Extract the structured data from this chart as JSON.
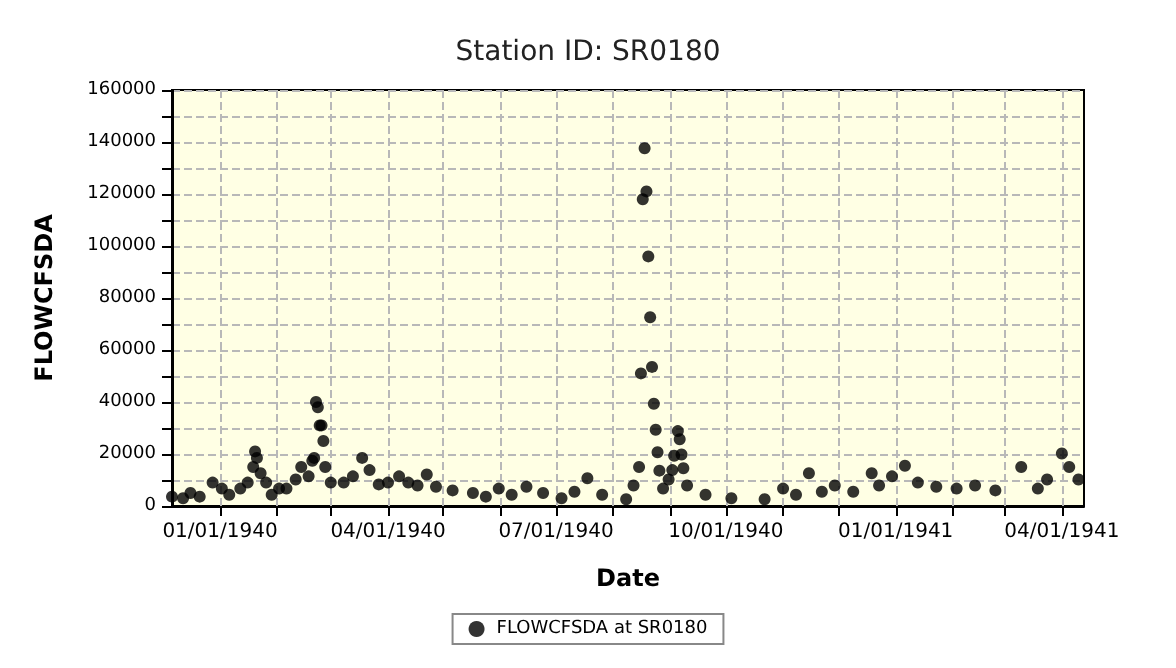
{
  "chart_data": {
    "type": "scatter",
    "title": "Station ID: SR0180",
    "xlabel": "Date",
    "ylabel": "FLOWCFSDA",
    "xlim": [
      "1939-12-06",
      "1941-04-13"
    ],
    "ylim": [
      0,
      160000
    ],
    "xticks": [
      {
        "value": "1940-01-01",
        "label": "01/01/1940"
      },
      {
        "value": "1940-02-01",
        "label": null
      },
      {
        "value": "1940-03-01",
        "label": null
      },
      {
        "value": "1940-04-01",
        "label": "04/01/1940"
      },
      {
        "value": "1940-05-01",
        "label": null
      },
      {
        "value": "1940-06-01",
        "label": null
      },
      {
        "value": "1940-07-01",
        "label": "07/01/1940"
      },
      {
        "value": "1940-08-01",
        "label": null
      },
      {
        "value": "1940-09-01",
        "label": null
      },
      {
        "value": "1940-10-01",
        "label": "10/01/1940"
      },
      {
        "value": "1940-11-01",
        "label": null
      },
      {
        "value": "1940-12-01",
        "label": null
      },
      {
        "value": "1941-01-01",
        "label": "01/01/1941"
      },
      {
        "value": "1941-02-01",
        "label": null
      },
      {
        "value": "1941-03-01",
        "label": null
      },
      {
        "value": "1941-04-01",
        "label": "04/01/1941"
      }
    ],
    "yticks": [
      0,
      {
        "value": 10000,
        "label": null
      },
      20000,
      {
        "value": 30000,
        "label": null
      },
      40000,
      {
        "value": 50000,
        "label": null
      },
      60000,
      {
        "value": 70000,
        "label": null
      },
      80000,
      {
        "value": 90000,
        "label": null
      },
      100000,
      {
        "value": 110000,
        "label": null
      },
      120000,
      {
        "value": 130000,
        "label": null
      },
      140000,
      {
        "value": 150000,
        "label": null
      },
      160000
    ],
    "grid": true,
    "legend": "bottom",
    "marker": "circle",
    "series": [
      {
        "name": "FLOWCFSDA at SR0180",
        "color": "#000000",
        "x": [
          "1939-12-06",
          "1939-12-12",
          "1939-12-16",
          "1939-12-21",
          "1939-12-28",
          "1940-01-02",
          "1940-01-06",
          "1940-01-12",
          "1940-01-16",
          "1940-01-19",
          "1940-01-20",
          "1940-01-21",
          "1940-01-23",
          "1940-01-26",
          "1940-01-29",
          "1940-02-02",
          "1940-02-06",
          "1940-02-11",
          "1940-02-14",
          "1940-02-18",
          "1940-02-20",
          "1940-02-21",
          "1940-02-22",
          "1940-02-23",
          "1940-02-24",
          "1940-02-25",
          "1940-02-26",
          "1940-02-27",
          "1940-03-01",
          "1940-03-08",
          "1940-03-13",
          "1940-03-18",
          "1940-03-22",
          "1940-03-27",
          "1940-04-01",
          "1940-04-07",
          "1940-04-12",
          "1940-04-17",
          "1940-04-22",
          "1940-04-27",
          "1940-05-06",
          "1940-05-17",
          "1940-05-24",
          "1940-05-31",
          "1940-06-07",
          "1940-06-15",
          "1940-06-24",
          "1940-07-04",
          "1940-07-11",
          "1940-07-18",
          "1940-07-26",
          "1940-08-08",
          "1940-08-12",
          "1940-08-15",
          "1940-08-16",
          "1940-08-17",
          "1940-08-18",
          "1940-08-19",
          "1940-08-20",
          "1940-08-21",
          "1940-08-22",
          "1940-08-23",
          "1940-08-24",
          "1940-08-25",
          "1940-08-26",
          "1940-08-28",
          "1940-08-31",
          "1940-09-02",
          "1940-09-03",
          "1940-09-05",
          "1940-09-06",
          "1940-09-07",
          "1940-09-08",
          "1940-09-10",
          "1940-09-20",
          "1940-10-04",
          "1940-10-22",
          "1940-11-01",
          "1940-11-08",
          "1940-11-15",
          "1940-11-22",
          "1940-11-29",
          "1940-12-09",
          "1940-12-19",
          "1940-12-23",
          "1940-12-30",
          "1941-01-06",
          "1941-01-13",
          "1941-01-23",
          "1941-02-03",
          "1941-02-13",
          "1941-02-24",
          "1941-03-10",
          "1941-03-19",
          "1941-03-24",
          "1941-04-01",
          "1941-04-05",
          "1941-04-10"
        ],
        "values": [
          3600,
          3000,
          5000,
          3600,
          9000,
          6700,
          4300,
          6700,
          9000,
          15000,
          21000,
          18500,
          12600,
          9000,
          4300,
          6700,
          6700,
          10200,
          15000,
          11400,
          17400,
          18500,
          40000,
          38000,
          31000,
          31000,
          25000,
          15000,
          9000,
          9000,
          11400,
          18500,
          13800,
          8300,
          9000,
          11400,
          9000,
          7900,
          12100,
          7400,
          6000,
          5000,
          3600,
          6700,
          4300,
          7400,
          5000,
          3000,
          5500,
          10700,
          4300,
          2600,
          7900,
          15000,
          51000,
          118000,
          137600,
          121000,
          96000,
          72600,
          53500,
          39300,
          29300,
          20700,
          13600,
          6700,
          10200,
          13800,
          19300,
          28800,
          25700,
          19800,
          14500,
          7900,
          4300,
          3000,
          2600,
          6700,
          4300,
          12600,
          5500,
          7900,
          5500,
          12600,
          7900,
          11400,
          15500,
          9000,
          7400,
          6700,
          7900,
          6000,
          15000,
          6700,
          10200,
          20200,
          15000,
          10200
        ]
      }
    ]
  }
}
